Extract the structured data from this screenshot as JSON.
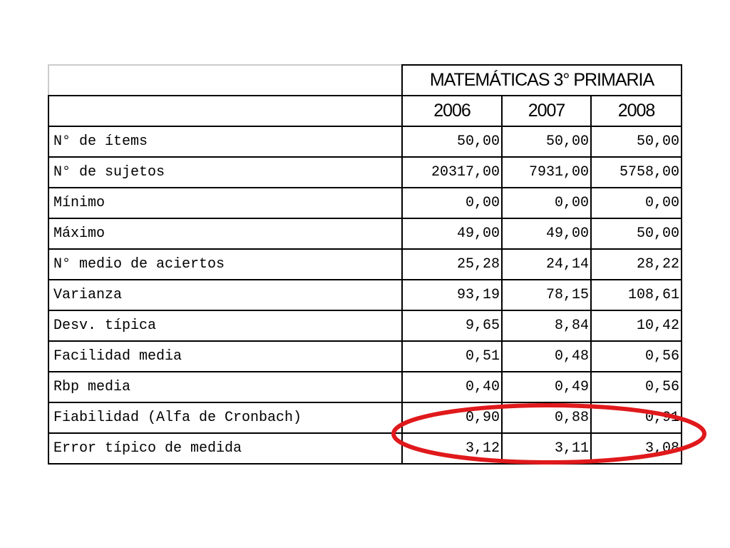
{
  "table": {
    "title": "MATEMÁTICAS 3° PRIMARIA",
    "columns": [
      "2006",
      "2007",
      "2008"
    ],
    "rows": [
      [
        "N° de ítems",
        "50,00",
        "50,00",
        "50,00"
      ],
      [
        "N° de sujetos",
        "20317,00",
        "7931,00",
        "5758,00"
      ],
      [
        "Mínimo",
        "0,00",
        "0,00",
        "0,00"
      ],
      [
        "Máximo",
        "49,00",
        "49,00",
        "50,00"
      ],
      [
        "N° medio de aciertos",
        "25,28",
        "24,14",
        "28,22"
      ],
      [
        "Varianza",
        "93,19",
        "78,15",
        "108,61"
      ],
      [
        "Desv. típica",
        "9,65",
        "8,84",
        "10,42"
      ],
      [
        "Facilidad media",
        "0,51",
        "0,48",
        "0,56"
      ],
      [
        "Rbp media",
        "0,40",
        "0,49",
        "0,56"
      ],
      [
        "Fiabilidad (Alfa de Cronbach)",
        "0,90",
        "0,88",
        "0,91"
      ],
      [
        "Error típico de medida",
        "3,12",
        "3,11",
        "3,08"
      ]
    ]
  }
}
